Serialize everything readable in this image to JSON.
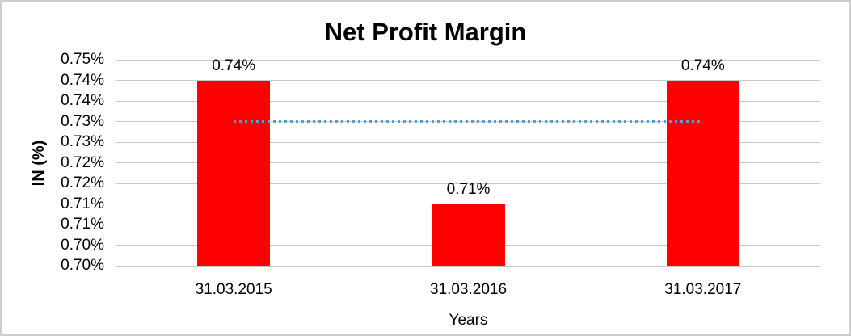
{
  "window": {
    "background": "#FFFFFF",
    "border_color": "#CFCFCF"
  },
  "chart_data": {
    "type": "bar",
    "title": "Net Profit Margin",
    "xlabel": "Years",
    "ylabel": "IN (%)",
    "categories": [
      "31.03.2015",
      "31.03.2016",
      "31.03.2017"
    ],
    "values": [
      0.74,
      0.71,
      0.74
    ],
    "data_labels": [
      "0.74%",
      "0.71%",
      "0.74%"
    ],
    "values_plotted_estimate": [
      0.745,
      0.715,
      0.745
    ],
    "ylim": [
      0.7,
      0.75
    ],
    "y_tick_step": 0.005,
    "y_tick_labels": [
      "0.75%",
      "0.74%",
      "0.74%",
      "0.73%",
      "0.73%",
      "0.72%",
      "0.72%",
      "0.71%",
      "0.71%",
      "0.70%",
      "0.70%"
    ],
    "grid": true,
    "legend": "none",
    "bar_color": "#FF0000",
    "gridline_color": "#C9C9C9",
    "trendline": {
      "style": "dotted",
      "color": "#5B9BD5",
      "y_start": 0.735,
      "y_end": 0.735
    }
  }
}
